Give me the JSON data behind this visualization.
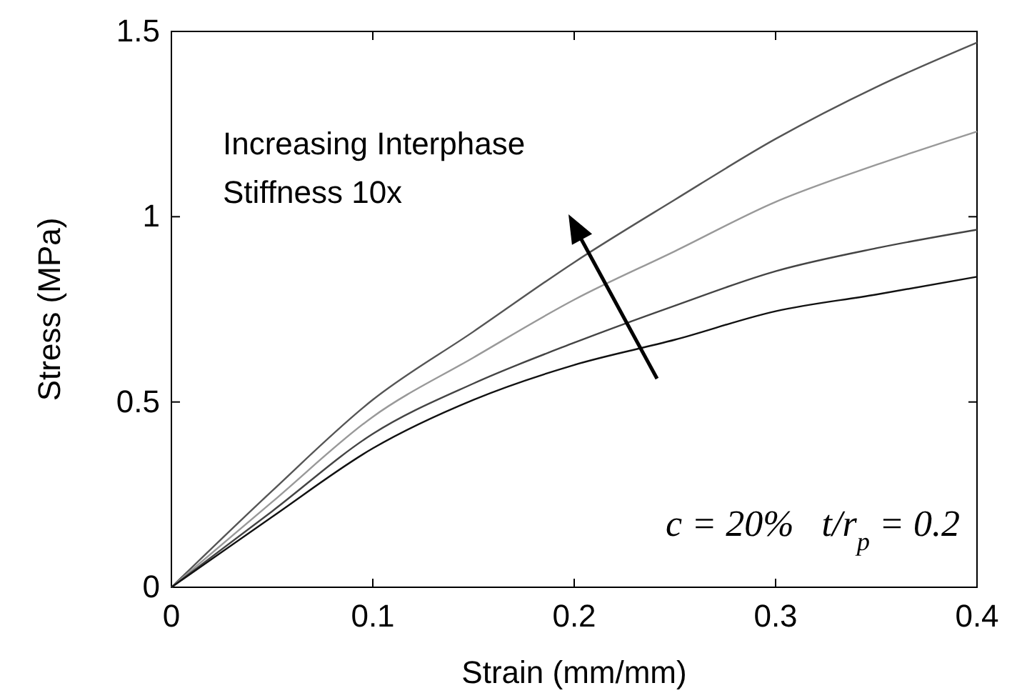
{
  "chart_data": {
    "type": "line",
    "xlabel": "Strain (mm/mm)",
    "ylabel": "Stress (MPa)",
    "x": [
      0,
      0.05,
      0.1,
      0.15,
      0.2,
      0.25,
      0.3,
      0.35,
      0.4
    ],
    "series": [
      {
        "color": "#555555",
        "values": [
          0,
          0.26,
          0.506,
          0.69,
          0.877,
          1.046,
          1.21,
          1.35,
          1.47
        ]
      },
      {
        "color": "#999999",
        "values": [
          0,
          0.23,
          0.46,
          0.62,
          0.776,
          0.907,
          1.04,
          1.14,
          1.23
        ]
      },
      {
        "color": "#444444",
        "values": [
          0,
          0.205,
          0.414,
          0.55,
          0.66,
          0.76,
          0.853,
          0.915,
          0.965
        ]
      },
      {
        "color": "#111111",
        "values": [
          0,
          0.19,
          0.375,
          0.506,
          0.6,
          0.668,
          0.745,
          0.79,
          0.838
        ]
      }
    ],
    "xlim": [
      0,
      0.4
    ],
    "ylim": [
      0,
      1.5
    ],
    "xticks": [
      0,
      0.1,
      0.2,
      0.3,
      0.4
    ],
    "yticks": [
      0,
      0.5,
      1,
      1.5
    ],
    "grid": false,
    "annotations": [
      "Increasing Interphase Stiffness 10x",
      "c = 20%   t/r$_{p}$ = 0.2"
    ]
  }
}
